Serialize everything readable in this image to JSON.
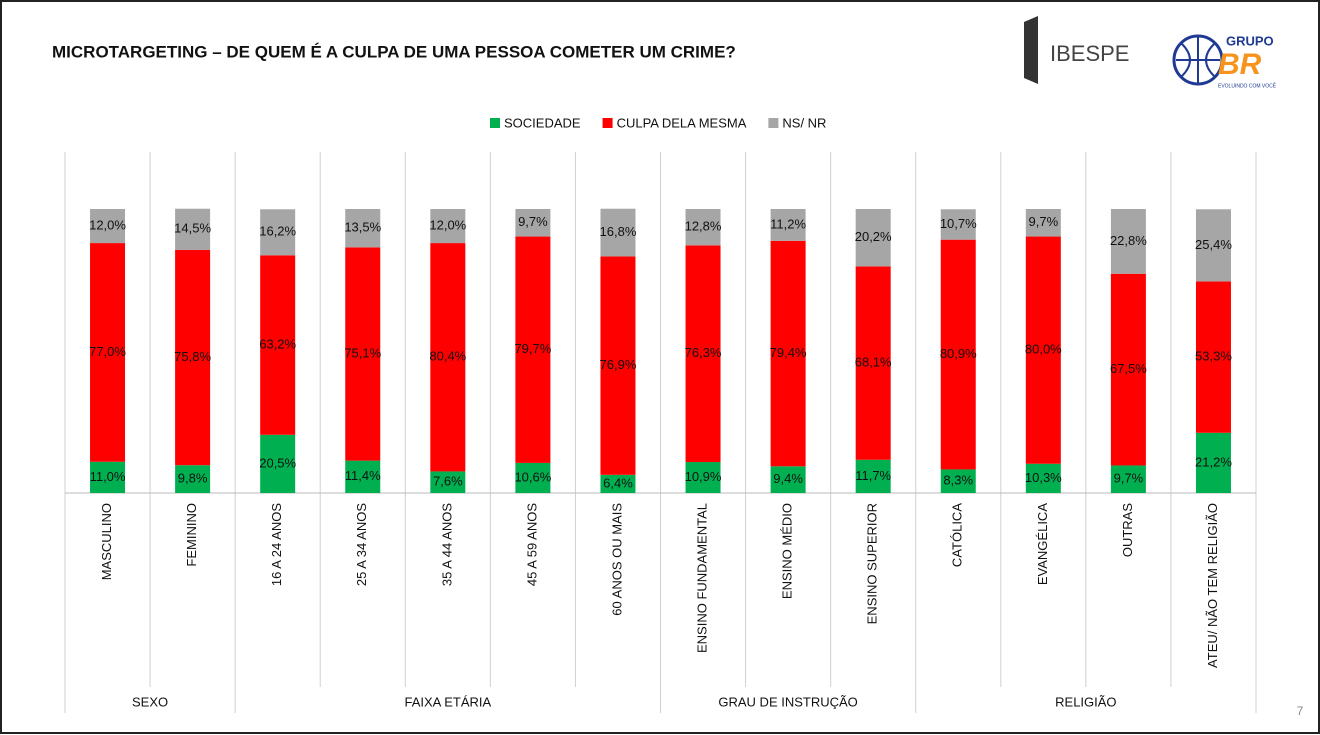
{
  "chart_data": {
    "type": "stacked_bar",
    "title": "MICROTARGETING – DE QUEM É A CULPA DE UMA PESSOA COMETER UM CRIME?",
    "categories": [
      "MASCULINO",
      "FEMININO",
      "16 A 24 ANOS",
      "25 A 34 ANOS",
      "35 A 44 ANOS",
      "45 A 59 ANOS",
      "60 ANOS OU MAIS",
      "ENSINO FUNDAMENTAL",
      "ENSINO MÉDIO",
      "ENSINO SUPERIOR",
      "CATÓLICA",
      "EVANGÉLICA",
      "OUTRAS",
      "ATEU/ NÃO TEM RELIGIÃO"
    ],
    "category_groups": [
      "SEXO",
      "SEXO",
      "FAIXA ETÁRIA",
      "FAIXA ETÁRIA",
      "FAIXA ETÁRIA",
      "FAIXA ETÁRIA",
      "FAIXA ETÁRIA",
      "GRAU DE INSTRUÇÃO",
      "GRAU DE INSTRUÇÃO",
      "GRAU DE INSTRUÇÃO",
      "RELIGIÃO",
      "RELIGIÃO",
      "RELIGIÃO",
      "RELIGIÃO"
    ],
    "series": [
      {
        "name": "SOCIEDADE",
        "color": "#00b050",
        "values": [
          11.0,
          9.8,
          20.5,
          11.4,
          7.6,
          10.6,
          6.4,
          10.9,
          9.4,
          11.7,
          8.3,
          10.3,
          9.7,
          21.2
        ],
        "value_labels": [
          "11,0%",
          "9,8%",
          "20,5%",
          "11,4%",
          "7,6%",
          "10,6%",
          "6,4%",
          "10,9%",
          "9,4%",
          "11,7%",
          "8,3%",
          "10,3%",
          "9,7%",
          "21,2%"
        ]
      },
      {
        "name": "CULPA DELA MESMA",
        "color": "#ff0000",
        "values": [
          77.0,
          75.8,
          63.2,
          75.1,
          80.4,
          79.7,
          76.9,
          76.3,
          79.4,
          68.1,
          80.9,
          80.0,
          67.5,
          53.3
        ],
        "value_labels": [
          "77,0%",
          "75,8%",
          "63,2%",
          "75,1%",
          "80,4%",
          "79,7%",
          "76,9%",
          "76,3%",
          "79,4%",
          "68,1%",
          "80,9%",
          "80,0%",
          "67,5%",
          "53,3%"
        ]
      },
      {
        "name": "NS/ NR",
        "color": "#a6a6a6",
        "values": [
          12.0,
          14.5,
          16.2,
          13.5,
          12.0,
          9.7,
          16.8,
          12.8,
          11.2,
          20.2,
          10.7,
          9.7,
          22.8,
          25.4
        ],
        "value_labels": [
          "12,0%",
          "14,5%",
          "16,2%",
          "13,5%",
          "12,0%",
          "9,7%",
          "16,8%",
          "12,8%",
          "11,2%",
          "20,2%",
          "10,7%",
          "9,7%",
          "22,8%",
          "25,4%"
        ]
      }
    ],
    "ylim": [
      0,
      100
    ],
    "legend": "top"
  },
  "logos": {
    "ibespe": "IBESPE",
    "grupo": "GRUPO",
    "br": "BR",
    "tagline": "EVOLUINDO COM VOCÊ"
  },
  "page_number": "7"
}
